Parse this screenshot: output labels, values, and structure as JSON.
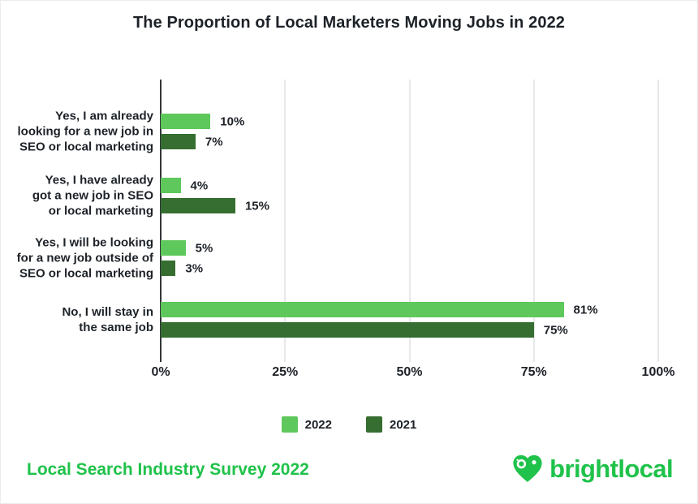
{
  "title": "The Proportion of Local Marketers Moving Jobs in 2022",
  "chart_data": {
    "type": "bar",
    "orientation": "horizontal",
    "title": "The Proportion of Local Marketers Moving Jobs in 2022",
    "categories": [
      "Yes, I am already looking for a new job in SEO or local marketing",
      "Yes, I have already got a new job in SEO or local marketing",
      "Yes, I will be looking for a new job outside of SEO or local marketing",
      "No, I will stay in the same job"
    ],
    "categories_lines": [
      [
        "Yes, I am already",
        "looking for a new job in",
        "SEO or local marketing"
      ],
      [
        "Yes, I have already",
        "got a new job in SEO",
        "or local marketing"
      ],
      [
        "Yes, I will be looking",
        "for a new job outside of",
        "SEO or local marketing"
      ],
      [
        "No, I will stay in",
        "the same job"
      ]
    ],
    "series": [
      {
        "name": "2022",
        "color": "#5EC85C",
        "values": [
          10,
          4,
          5,
          81
        ]
      },
      {
        "name": "2021",
        "color": "#356E30",
        "values": [
          7,
          15,
          3,
          75
        ]
      }
    ],
    "value_labels": [
      [
        "10%",
        "4%",
        "5%",
        "81%"
      ],
      [
        "7%",
        "15%",
        "3%",
        "75%"
      ]
    ],
    "x_ticks": [
      {
        "label": "0%",
        "value": 0
      },
      {
        "label": "25%",
        "value": 25
      },
      {
        "label": "50%",
        "value": 50
      },
      {
        "label": "75%",
        "value": 75
      },
      {
        "label": "100%",
        "value": 100
      }
    ],
    "xlim": [
      0,
      100
    ],
    "grid": true,
    "legend": [
      "2022",
      "2021"
    ],
    "legend_position": "bottom"
  },
  "footer": {
    "source": "Local Search Industry Survey 2022",
    "brand": "brightlocal"
  },
  "colors": {
    "series_2022": "#5EC85C",
    "series_2021": "#356E30",
    "brand_green": "#1FC24A",
    "axis_line": "#33373A",
    "gridline": "#D2D2D2",
    "text_dark": "#1D2228",
    "background": "#FFFFFF"
  }
}
